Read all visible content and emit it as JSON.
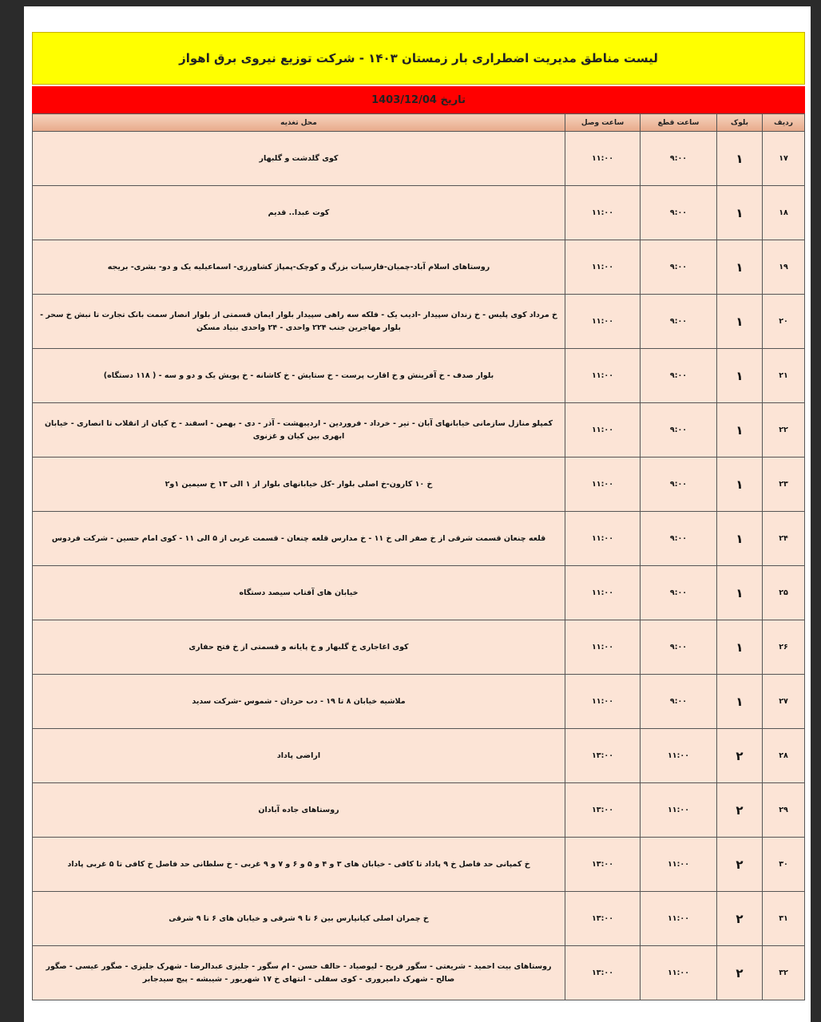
{
  "title": "لیست مناطق مدیریت اضطراری بار زمستان ۱۴۰۳ - شرکت توزیع نیروی برق اهواز",
  "date": "تاریخ 1403/12/04",
  "headers": [
    "ردیف",
    "بلوک",
    "ساعت قطع",
    "ساعت وصل",
    "محل تغذیه"
  ],
  "colors": {
    "title_bg": "#ffff00",
    "date_bg": "#ff0000",
    "row_bg": "#fce4d6"
  },
  "rows": [
    {
      "n": "۱۷",
      "block": "۱",
      "off": "۹:۰۰",
      "on": "۱۱:۰۰",
      "area": "کوی گلدشت و گلبهار"
    },
    {
      "n": "۱۸",
      "block": "۱",
      "off": "۹:۰۰",
      "on": "۱۱:۰۰",
      "area": "کوت عبدا.. قدیم"
    },
    {
      "n": "۱۹",
      "block": "۱",
      "off": "۹:۰۰",
      "on": "۱۱:۰۰",
      "area": "روستاهای اسلام آباد-چمیان-فارسیات بزرگ و کوچک-پمپاژ کشاورزی- اسماعیلیه یک و دو- بشری- بریجه"
    },
    {
      "n": "۲۰",
      "block": "۱",
      "off": "۹:۰۰",
      "on": "۱۱:۰۰",
      "area": "خ مرداد کوی پلیس - خ زندان سپیدار -ادیب یک - فلکه سه راهی سپیدار بلوار ایمان قسمتی از بلوار انصار سمت بانک تجارت تا نبش خ سحر - بلوار مهاجرین جنب ۲۲۴ واحدی - ۲۴ واحدی بنیاد مسکن"
    },
    {
      "n": "۲۱",
      "block": "۱",
      "off": "۹:۰۰",
      "on": "۱۱:۰۰",
      "area": "بلوار صدف - خ آفرینش و خ اقارب پرست - خ ستایش - خ کاشانه - خ پویش یک و دو و سه - ( ۱۱۸ دستگاه)"
    },
    {
      "n": "۲۲",
      "block": "۱",
      "off": "۹:۰۰",
      "on": "۱۱:۰۰",
      "area": "کمپلو منازل سازمانی خیابانهای آبان - تیر - خرداد - فروردین - اردیبهشت - آذر - دی - بهمن - اسفند - خ کیان از انقلاب تا انصاری - خیابان ابهری بین کیان و غزنوی"
    },
    {
      "n": "۲۳",
      "block": "۱",
      "off": "۹:۰۰",
      "on": "۱۱:۰۰",
      "area": "خ ۱۰ کارون-خ اصلی بلوار -کل خیابانهای بلوار از ۱ الی ۱۳ خ سیمین ۱و۲"
    },
    {
      "n": "۲۴",
      "block": "۱",
      "off": "۹:۰۰",
      "on": "۱۱:۰۰",
      "area": "قلعه چنعان قسمت شرقی از خ صفر الی خ ۱۱ - خ مدارس قلعه چنعان - قسمت غربی از ۵ الی ۱۱ - کوی امام حسین - شرکت فردوس"
    },
    {
      "n": "۲۵",
      "block": "۱",
      "off": "۹:۰۰",
      "on": "۱۱:۰۰",
      "area": "خیابان های آفتاب سیصد دستگاه"
    },
    {
      "n": "۲۶",
      "block": "۱",
      "off": "۹:۰۰",
      "on": "۱۱:۰۰",
      "area": "کوی اغاجاری خ گلبهار و خ پایانه و قسمتی از خ فتح حفاری"
    },
    {
      "n": "۲۷",
      "block": "۱",
      "off": "۹:۰۰",
      "on": "۱۱:۰۰",
      "area": "ملاشیه خیابان ۸ تا ۱۹ - دب حردان - شموس -شرکت سدید"
    },
    {
      "n": "۲۸",
      "block": "۲",
      "off": "۱۱:۰۰",
      "on": "۱۳:۰۰",
      "area": "اراضی پاداد"
    },
    {
      "n": "۲۹",
      "block": "۲",
      "off": "۱۱:۰۰",
      "on": "۱۳:۰۰",
      "area": "روستاهای جاده آبادان"
    },
    {
      "n": "۳۰",
      "block": "۲",
      "off": "۱۱:۰۰",
      "on": "۱۳:۰۰",
      "area": "خ کمپانی حد فاصل خ ۹ پاداد تا کافی - خیابان های ۳ و ۴ و ۵ و ۶ و ۷ و ۹ غربی - خ سلطانی حد فاصل خ کافی تا ۵ غربی پاداد"
    },
    {
      "n": "۳۱",
      "block": "۲",
      "off": "۱۱:۰۰",
      "on": "۱۳:۰۰",
      "area": "خ چمران اصلی کیانپارس بین ۶ تا ۹ شرقی و خیابان های ۶ تا ۹ شرقی"
    },
    {
      "n": "۳۲",
      "block": "۲",
      "off": "۱۱:۰۰",
      "on": "۱۳:۰۰",
      "area": "روستاهای بیت احمید - شریعتی - سگور فریح - لیوصیاد - حالف حسن - ام سگور - جلیزی عبدالرضا - شهرک جلیزی - صگور عیسی - صگور صالح - شهرک دامیروری - کوی سفلی - انتهای خ ۱۷ شهریور - شیبشه - پیچ سیدجابر"
    }
  ]
}
